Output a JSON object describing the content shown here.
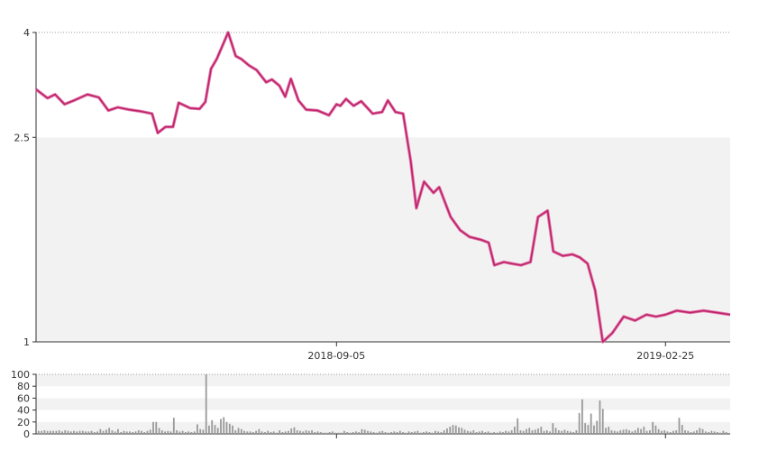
{
  "chart_data": [
    {
      "type": "line",
      "y_axis": {
        "ylim": [
          1,
          4
        ],
        "ticks": [
          1,
          2.5,
          4
        ],
        "tick_labels": [
          "1",
          "2.5",
          "4"
        ],
        "scale": "log"
      },
      "x_axis": {
        "range": [
          "2018-03-31",
          "2019-03-31"
        ],
        "ticks": [
          "2018-09-05",
          "2019-02-25"
        ]
      },
      "grid": {
        "y_dotted_top": true,
        "banded_background": true
      },
      "band_color": "#f2f2f2",
      "series": [
        {
          "color": "#c0216c",
          "points": [
            [
              "2018-03-31",
              3.1
            ],
            [
              "2018-04-06",
              2.98
            ],
            [
              "2018-04-10",
              3.03
            ],
            [
              "2018-04-15",
              2.9
            ],
            [
              "2018-04-20",
              2.95
            ],
            [
              "2018-04-27",
              3.03
            ],
            [
              "2018-05-03",
              2.99
            ],
            [
              "2018-05-08",
              2.82
            ],
            [
              "2018-05-13",
              2.86
            ],
            [
              "2018-05-19",
              2.83
            ],
            [
              "2018-05-25",
              2.81
            ],
            [
              "2018-05-31",
              2.78
            ],
            [
              "2018-06-03",
              2.55
            ],
            [
              "2018-06-07",
              2.62
            ],
            [
              "2018-06-11",
              2.62
            ],
            [
              "2018-06-14",
              2.92
            ],
            [
              "2018-06-20",
              2.85
            ],
            [
              "2018-06-25",
              2.84
            ],
            [
              "2018-06-28",
              2.93
            ],
            [
              "2018-07-01",
              3.4
            ],
            [
              "2018-07-04",
              3.55
            ],
            [
              "2018-07-10",
              4.0
            ],
            [
              "2018-07-14",
              3.6
            ],
            [
              "2018-07-17",
              3.55
            ],
            [
              "2018-07-21",
              3.45
            ],
            [
              "2018-07-25",
              3.38
            ],
            [
              "2018-07-30",
              3.2
            ],
            [
              "2018-08-02",
              3.24
            ],
            [
              "2018-08-06",
              3.15
            ],
            [
              "2018-08-09",
              3.0
            ],
            [
              "2018-08-12",
              3.25
            ],
            [
              "2018-08-16",
              2.95
            ],
            [
              "2018-08-20",
              2.83
            ],
            [
              "2018-08-26",
              2.82
            ],
            [
              "2018-09-01",
              2.76
            ],
            [
              "2018-09-05",
              2.9
            ],
            [
              "2018-09-07",
              2.88
            ],
            [
              "2018-09-10",
              2.97
            ],
            [
              "2018-09-14",
              2.88
            ],
            [
              "2018-09-18",
              2.94
            ],
            [
              "2018-09-24",
              2.78
            ],
            [
              "2018-09-29",
              2.8
            ],
            [
              "2018-10-02",
              2.95
            ],
            [
              "2018-10-06",
              2.8
            ],
            [
              "2018-10-10",
              2.78
            ],
            [
              "2018-10-14",
              2.25
            ],
            [
              "2018-10-17",
              1.82
            ],
            [
              "2018-10-21",
              2.05
            ],
            [
              "2018-10-26",
              1.95
            ],
            [
              "2018-10-29",
              2.0
            ],
            [
              "2018-11-04",
              1.75
            ],
            [
              "2018-11-09",
              1.65
            ],
            [
              "2018-11-14",
              1.6
            ],
            [
              "2018-11-20",
              1.58
            ],
            [
              "2018-11-24",
              1.56
            ],
            [
              "2018-11-27",
              1.41
            ],
            [
              "2018-12-02",
              1.43
            ],
            [
              "2018-12-06",
              1.42
            ],
            [
              "2018-12-11",
              1.41
            ],
            [
              "2018-12-16",
              1.43
            ],
            [
              "2018-12-20",
              1.75
            ],
            [
              "2018-12-25",
              1.8
            ],
            [
              "2018-12-28",
              1.5
            ],
            [
              "2019-01-02",
              1.47
            ],
            [
              "2019-01-07",
              1.48
            ],
            [
              "2019-01-11",
              1.46
            ],
            [
              "2019-01-15",
              1.42
            ],
            [
              "2019-01-19",
              1.26
            ],
            [
              "2019-01-23",
              1.0
            ],
            [
              "2019-01-28",
              1.04
            ],
            [
              "2019-02-03",
              1.12
            ],
            [
              "2019-02-09",
              1.1
            ],
            [
              "2019-02-15",
              1.13
            ],
            [
              "2019-02-20",
              1.12
            ],
            [
              "2019-02-25",
              1.13
            ],
            [
              "2019-03-03",
              1.15
            ],
            [
              "2019-03-10",
              1.14
            ],
            [
              "2019-03-17",
              1.15
            ],
            [
              "2019-03-24",
              1.14
            ],
            [
              "2019-03-31",
              1.13
            ]
          ]
        }
      ]
    },
    {
      "type": "bar",
      "ylim": [
        0,
        100
      ],
      "ticks": [
        0,
        20,
        40,
        60,
        80,
        100
      ],
      "tick_labels": [
        "0",
        "20",
        "40",
        "60",
        "80",
        "100"
      ],
      "bar_color": "#999999",
      "band_color": "#f2f2f2",
      "values": [
        5,
        5,
        6,
        5,
        5,
        5,
        5,
        6,
        4,
        6,
        5,
        4,
        5,
        4,
        5,
        5,
        4,
        4,
        5,
        3,
        4,
        8,
        5,
        7,
        10,
        6,
        4,
        8,
        3,
        5,
        4,
        4,
        3,
        4,
        6,
        5,
        3,
        5,
        7,
        20,
        20,
        10,
        6,
        4,
        5,
        4,
        27,
        6,
        4,
        5,
        3,
        4,
        3,
        4,
        16,
        8,
        7,
        100,
        14,
        23,
        15,
        10,
        25,
        28,
        20,
        17,
        14,
        6,
        10,
        8,
        5,
        4,
        4,
        3,
        5,
        8,
        4,
        3,
        5,
        3,
        4,
        2,
        6,
        3,
        4,
        5,
        9,
        11,
        6,
        5,
        4,
        6,
        5,
        6,
        3,
        4,
        3,
        2,
        2,
        3,
        4,
        2,
        2,
        2,
        5,
        3,
        2,
        3,
        4,
        3,
        8,
        7,
        5,
        4,
        3,
        2,
        4,
        5,
        3,
        2,
        3,
        4,
        3,
        5,
        3,
        2,
        4,
        3,
        4,
        5,
        2,
        3,
        4,
        3,
        2,
        5,
        4,
        3,
        6,
        9,
        12,
        15,
        14,
        11,
        10,
        7,
        5,
        4,
        6,
        3,
        4,
        5,
        3,
        4,
        2,
        3,
        2,
        4,
        3,
        5,
        4,
        6,
        12,
        26,
        6,
        5,
        8,
        10,
        6,
        7,
        9,
        12,
        5,
        6,
        4,
        18,
        10,
        6,
        5,
        7,
        5,
        4,
        3,
        6,
        35,
        58,
        18,
        15,
        34,
        14,
        22,
        56,
        42,
        10,
        12,
        6,
        5,
        4,
        6,
        7,
        8,
        6,
        4,
        6,
        10,
        8,
        12,
        5,
        6,
        20,
        14,
        8,
        5,
        6,
        4,
        3,
        5,
        6,
        27,
        15,
        6,
        5,
        3,
        4,
        6,
        10,
        8,
        4,
        3,
        5,
        4,
        3,
        2,
        5,
        3
      ]
    }
  ]
}
